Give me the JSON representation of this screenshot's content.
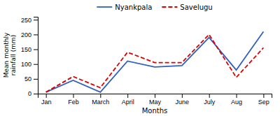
{
  "chart_data": {
    "type": "line",
    "categories": [
      "Jan",
      "Feb",
      "March",
      "April",
      "May",
      "June",
      "July",
      "Aug",
      "Sep"
    ],
    "series": [
      {
        "name": "Nyankpala",
        "color": "#3060c0",
        "line_style": "solid",
        "values": [
          5,
          45,
          5,
          110,
          90,
          95,
          190,
          80,
          210
        ]
      },
      {
        "name": "Savelugu",
        "color": "#dd0000",
        "line_style": "dashed",
        "values": [
          5,
          58,
          20,
          140,
          105,
          105,
          200,
          55,
          155
        ]
      }
    ],
    "xlabel": "Months",
    "ylabel": "Mean monthly\nrainfall (mm)",
    "ylim": [
      0,
      260
    ],
    "yticks": [
      0,
      50,
      100,
      150,
      200,
      250
    ],
    "grid": false,
    "legend": "top"
  }
}
